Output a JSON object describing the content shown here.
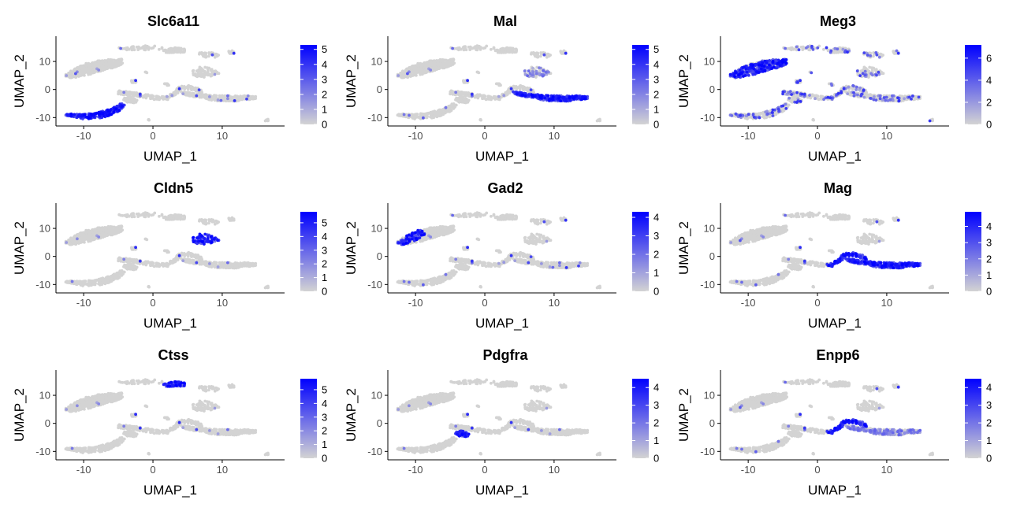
{
  "colors": {
    "low": "#d3d3d3",
    "high": "#0000ff",
    "axis": "#000000",
    "tick_label": "#4d4d4d"
  },
  "chart_data": [
    {
      "type": "scatter",
      "title": "Slc6a11",
      "xlabel": "UMAP_1",
      "ylabel": "UMAP_2",
      "xlim": [
        -14,
        19
      ],
      "ylim": [
        -13,
        19
      ],
      "xticks": [
        -10,
        0,
        10
      ],
      "xtick_labels": [
        "-10",
        "0",
        "10"
      ],
      "yticks": [
        -10,
        0,
        10
      ],
      "ytick_labels": [
        "-10",
        "0",
        "10"
      ],
      "legend": {
        "position": "right",
        "min": 0,
        "max": 5.3,
        "ticks": [
          0,
          1,
          2,
          3,
          4,
          5
        ],
        "labels": [
          "0",
          "1",
          "2",
          "3",
          "4",
          "5"
        ]
      },
      "grid": false,
      "high_clusters": [
        "astro_lower"
      ],
      "sparse": 0.02
    },
    {
      "type": "scatter",
      "title": "Mal",
      "xlabel": "UMAP_1",
      "ylabel": "UMAP_2",
      "xlim": [
        -14,
        19
      ],
      "ylim": [
        -13,
        19
      ],
      "xticks": [
        -10,
        0,
        10
      ],
      "xtick_labels": [
        "-10",
        "0",
        "10"
      ],
      "yticks": [
        -10,
        0,
        10
      ],
      "ytick_labels": [
        "-10",
        "0",
        "10"
      ],
      "legend": {
        "position": "right",
        "min": 0,
        "max": 5.3,
        "ticks": [
          0,
          1,
          2,
          3,
          4,
          5
        ],
        "labels": [
          "0",
          "1",
          "2",
          "3",
          "4",
          "5"
        ]
      },
      "grid": false,
      "high_clusters": [
        "oligo_right"
      ],
      "mid_clusters": [
        "endo_blob"
      ],
      "sparse": 0.02
    },
    {
      "type": "scatter",
      "title": "Meg3",
      "xlabel": "UMAP_1",
      "ylabel": "UMAP_2",
      "xlim": [
        -14,
        19
      ],
      "ylim": [
        -13,
        19
      ],
      "xticks": [
        -10,
        0,
        10
      ],
      "xtick_labels": [
        "-10",
        "0",
        "10"
      ],
      "yticks": [
        -10,
        0,
        10
      ],
      "ytick_labels": [
        "-10",
        "0",
        "10"
      ],
      "legend": {
        "position": "right",
        "min": 0,
        "max": 7.2,
        "ticks": [
          0,
          2,
          4,
          6
        ],
        "labels": [
          "0",
          "2",
          "4",
          "6"
        ]
      },
      "grid": false,
      "high_clusters": [
        "neuron_upper"
      ],
      "sparse": 0.2
    },
    {
      "type": "scatter",
      "title": "Cldn5",
      "xlabel": "UMAP_1",
      "ylabel": "UMAP_2",
      "xlim": [
        -14,
        19
      ],
      "ylim": [
        -13,
        19
      ],
      "xticks": [
        -10,
        0,
        10
      ],
      "xtick_labels": [
        "-10",
        "0",
        "10"
      ],
      "yticks": [
        -10,
        0,
        10
      ],
      "ytick_labels": [
        "-10",
        "0",
        "10"
      ],
      "legend": {
        "position": "right",
        "min": 0,
        "max": 5.8,
        "ticks": [
          0,
          1,
          2,
          3,
          4,
          5
        ],
        "labels": [
          "0",
          "1",
          "2",
          "3",
          "4",
          "5"
        ]
      },
      "grid": false,
      "high_clusters": [
        "endo_blob"
      ],
      "sparse": 0.01
    },
    {
      "type": "scatter",
      "title": "Gad2",
      "xlabel": "UMAP_1",
      "ylabel": "UMAP_2",
      "xlim": [
        -14,
        19
      ],
      "ylim": [
        -13,
        19
      ],
      "xticks": [
        -10,
        0,
        10
      ],
      "xtick_labels": [
        "-10",
        "0",
        "10"
      ],
      "yticks": [
        -10,
        0,
        10
      ],
      "ytick_labels": [
        "-10",
        "0",
        "10"
      ],
      "legend": {
        "position": "right",
        "min": 0,
        "max": 4.3,
        "ticks": [
          0,
          1,
          2,
          3,
          4
        ],
        "labels": [
          "0",
          "1",
          "2",
          "3",
          "4"
        ]
      },
      "grid": false,
      "high_clusters": [
        "neuron_upper_left"
      ],
      "sparse": 0.02
    },
    {
      "type": "scatter",
      "title": "Mag",
      "xlabel": "UMAP_1",
      "ylabel": "UMAP_2",
      "xlim": [
        -14,
        19
      ],
      "ylim": [
        -13,
        19
      ],
      "xticks": [
        -10,
        0,
        10
      ],
      "xtick_labels": [
        "-10",
        "0",
        "10"
      ],
      "yticks": [
        -10,
        0,
        10
      ],
      "ytick_labels": [
        "-10",
        "0",
        "10"
      ],
      "legend": {
        "position": "right",
        "min": 0,
        "max": 4.9,
        "ticks": [
          0,
          1,
          2,
          3,
          4
        ],
        "labels": [
          "0",
          "1",
          "2",
          "3",
          "4"
        ]
      },
      "grid": false,
      "high_clusters": [
        "oligo_right",
        "bridge_right"
      ],
      "sparse": 0.02
    },
    {
      "type": "scatter",
      "title": "Ctss",
      "xlabel": "UMAP_1",
      "ylabel": "UMAP_2",
      "xlim": [
        -14,
        19
      ],
      "ylim": [
        -13,
        19
      ],
      "xticks": [
        -10,
        0,
        10
      ],
      "xtick_labels": [
        "-10",
        "0",
        "10"
      ],
      "yticks": [
        -10,
        0,
        10
      ],
      "ytick_labels": [
        "-10",
        "0",
        "10"
      ],
      "legend": {
        "position": "right",
        "min": 0,
        "max": 5.8,
        "ticks": [
          0,
          1,
          2,
          3,
          4,
          5
        ],
        "labels": [
          "0",
          "1",
          "2",
          "3",
          "4",
          "5"
        ]
      },
      "grid": false,
      "high_clusters": [
        "micro_top"
      ],
      "sparse": 0.01
    },
    {
      "type": "scatter",
      "title": "Pdgfra",
      "xlabel": "UMAP_1",
      "ylabel": "UMAP_2",
      "xlim": [
        -14,
        19
      ],
      "ylim": [
        -13,
        19
      ],
      "xticks": [
        -10,
        0,
        10
      ],
      "xtick_labels": [
        "-10",
        "0",
        "10"
      ],
      "yticks": [
        -10,
        0,
        10
      ],
      "ytick_labels": [
        "-10",
        "0",
        "10"
      ],
      "legend": {
        "position": "right",
        "min": 0,
        "max": 4.5,
        "ticks": [
          0,
          1,
          2,
          3,
          4
        ],
        "labels": [
          "0",
          "1",
          "2",
          "3",
          "4"
        ]
      },
      "grid": false,
      "high_clusters": [
        "opc_small"
      ],
      "sparse": 0.01
    },
    {
      "type": "scatter",
      "title": "Enpp6",
      "xlabel": "UMAP_1",
      "ylabel": "UMAP_2",
      "xlim": [
        -14,
        19
      ],
      "ylim": [
        -13,
        19
      ],
      "xticks": [
        -10,
        0,
        10
      ],
      "xtick_labels": [
        "-10",
        "0",
        "10"
      ],
      "yticks": [
        -10,
        0,
        10
      ],
      "ytick_labels": [
        "-10",
        "0",
        "10"
      ],
      "legend": {
        "position": "right",
        "min": 0,
        "max": 4.5,
        "ticks": [
          0,
          1,
          2,
          3,
          4
        ],
        "labels": [
          "0",
          "1",
          "2",
          "3",
          "4"
        ]
      },
      "grid": false,
      "high_clusters": [
        "bridge_right"
      ],
      "mid_clusters": [
        "oligo_right"
      ],
      "sparse": 0.02
    }
  ]
}
